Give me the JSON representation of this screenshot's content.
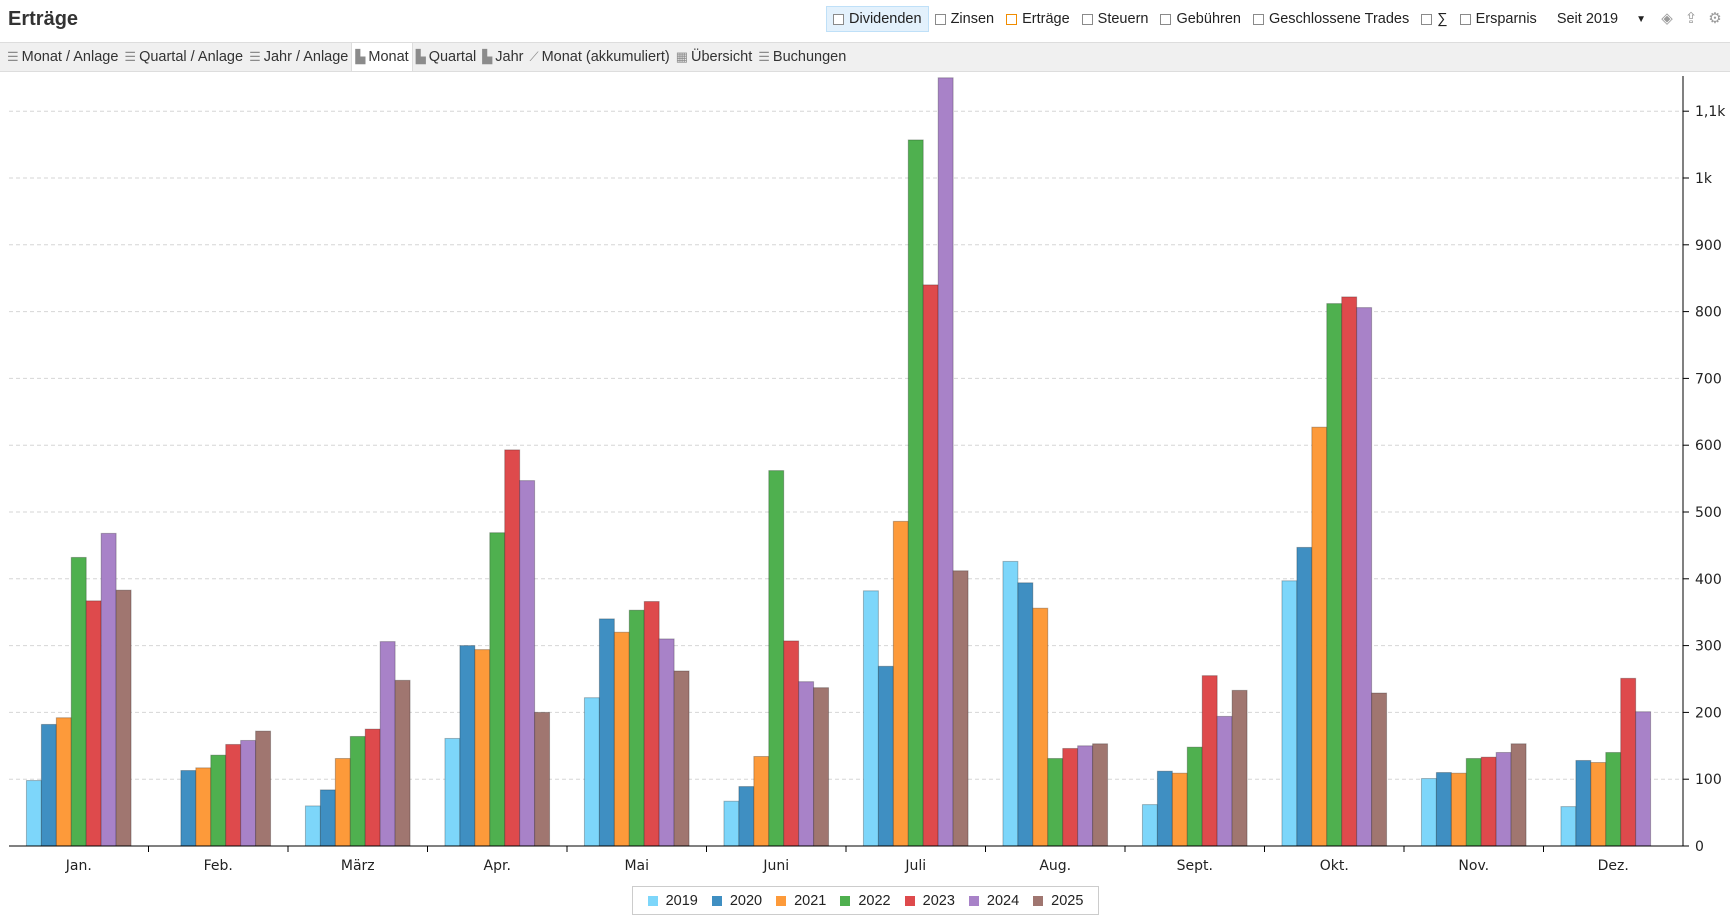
{
  "header": {
    "title": "Erträge",
    "filters": [
      {
        "label": "Dividenden",
        "active": true
      },
      {
        "label": "Zinsen"
      },
      {
        "label": "Erträge",
        "accent": "#f08c00"
      },
      {
        "label": "Steuern"
      },
      {
        "label": "Gebühren"
      },
      {
        "label": "Geschlossene Trades"
      },
      {
        "label": "∑"
      },
      {
        "label": "Ersparnis"
      }
    ],
    "period": "Seit 2019",
    "icons": [
      "layers-icon",
      "export-icon",
      "gear-icon"
    ]
  },
  "tabs": [
    {
      "label": "Monat / Anlage",
      "icon": "list-icon"
    },
    {
      "label": "Quartal / Anlage",
      "icon": "list-icon"
    },
    {
      "label": "Jahr / Anlage",
      "icon": "list-icon"
    },
    {
      "label": "Monat",
      "icon": "bar-chart-icon",
      "active": true
    },
    {
      "label": "Quartal",
      "icon": "bar-chart-icon"
    },
    {
      "label": "Jahr",
      "icon": "bar-chart-icon"
    },
    {
      "label": "Monat (akkumuliert)",
      "icon": "line-chart-icon"
    },
    {
      "label": "Übersicht",
      "icon": "calendar-icon"
    },
    {
      "label": "Buchungen",
      "icon": "list-icon"
    }
  ],
  "chart_data": {
    "type": "bar",
    "categories": [
      "Jan.",
      "Feb.",
      "März",
      "Apr.",
      "Mai",
      "Juni",
      "Juli",
      "Aug.",
      "Sept.",
      "Okt.",
      "Nov.",
      "Dez."
    ],
    "ylim": [
      0,
      1150
    ],
    "yticks": [
      0,
      100,
      200,
      300,
      400,
      500,
      600,
      700,
      800,
      900,
      1000,
      1100
    ],
    "ytick_labels": [
      "0",
      "100",
      "200",
      "300",
      "400",
      "500",
      "600",
      "700",
      "800",
      "900",
      "1k",
      "1,1k"
    ],
    "grid": true,
    "legend_position": "bottom-center",
    "series": [
      {
        "name": "2019",
        "color": "#7dd6fa",
        "values": [
          98,
          null,
          60,
          161,
          222,
          67,
          382,
          426,
          62,
          397,
          101,
          59
        ]
      },
      {
        "name": "2020",
        "color": "#3f8fc2",
        "values": [
          182,
          113,
          84,
          300,
          340,
          89,
          269,
          394,
          112,
          447,
          110,
          128
        ]
      },
      {
        "name": "2021",
        "color": "#fd9a3a",
        "values": [
          192,
          117,
          131,
          294,
          320,
          134,
          486,
          356,
          109,
          627,
          109,
          125
        ]
      },
      {
        "name": "2022",
        "color": "#4fb04f",
        "values": [
          432,
          136,
          164,
          469,
          353,
          562,
          1057,
          131,
          148,
          812,
          131,
          140
        ]
      },
      {
        "name": "2023",
        "color": "#de4a4c",
        "values": [
          367,
          152,
          175,
          593,
          366,
          307,
          840,
          146,
          255,
          822,
          133,
          251
        ]
      },
      {
        "name": "2024",
        "color": "#a882c8",
        "values": [
          468,
          158,
          306,
          547,
          310,
          246,
          1150,
          150,
          194,
          806,
          140,
          201
        ]
      },
      {
        "name": "2025",
        "color": "#a07670",
        "values": [
          383,
          172,
          248,
          200,
          262,
          237,
          412,
          153,
          233,
          229,
          153,
          null
        ]
      }
    ]
  }
}
